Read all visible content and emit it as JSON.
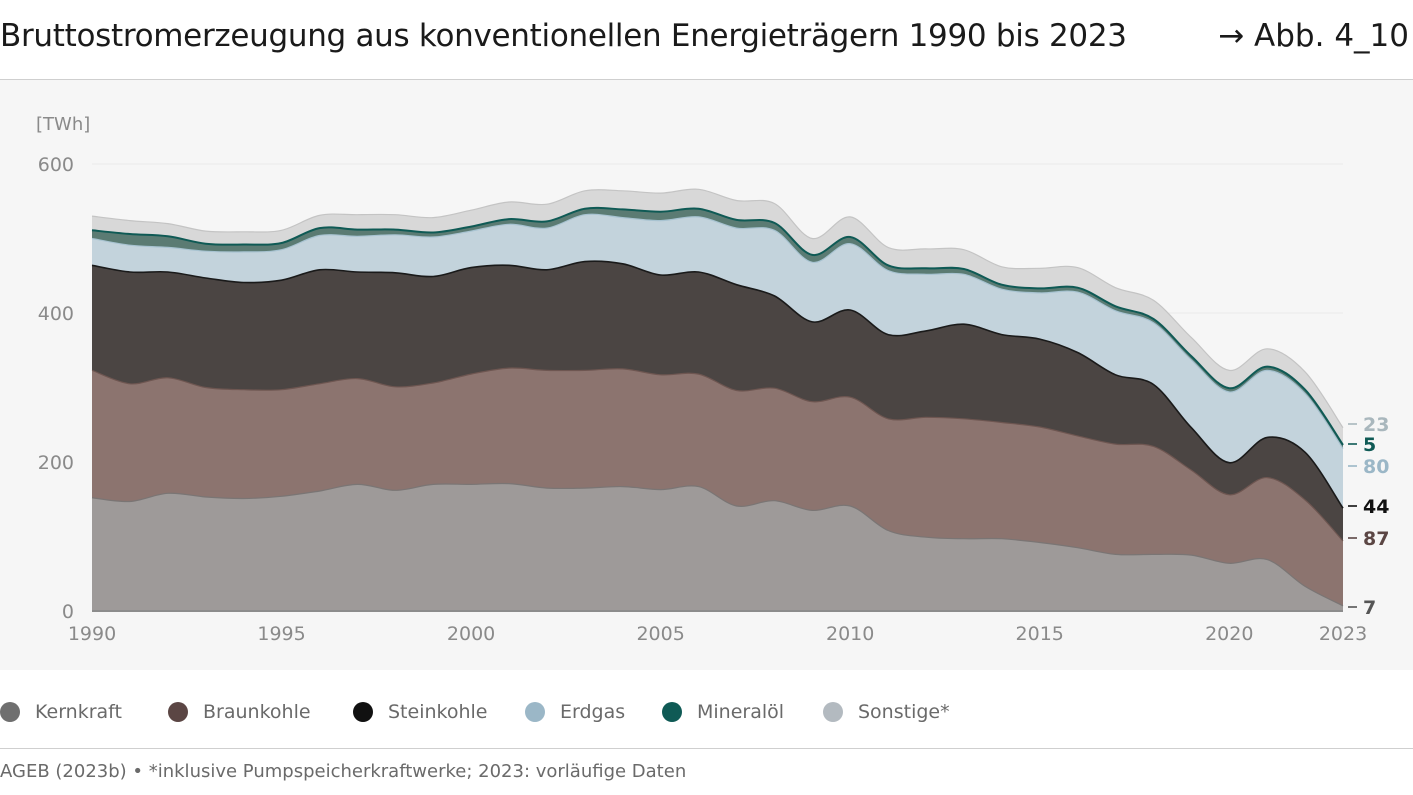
{
  "header": {
    "title": "Bruttostromerzeugung aus konventionellen Energieträgern 1990 bis 2023",
    "figure_ref": "→ Abb. 4_10"
  },
  "legend": [
    {
      "label": "Kernkraft",
      "color": "#6f6f6f"
    },
    {
      "label": "Braunkohle",
      "color": "#5b4644"
    },
    {
      "label": "Steinkohle",
      "color": "#111111"
    },
    {
      "label": "Erdgas",
      "color": "#9bb7c7"
    },
    {
      "label": "Mineralöl",
      "color": "#0f5a55"
    },
    {
      "label": "Sonstige*",
      "color": "#b3bac0"
    }
  ],
  "footer": {
    "source": "AGEB (2023b) • *inklusive Pumpspeicherkraftwerke; 2023: vorläufige Daten"
  },
  "chart_data": {
    "type": "area",
    "stacked": true,
    "title": "Bruttostromerzeugung aus konventionellen Energieträgern 1990 bis 2023",
    "unit_label": "[TWh]",
    "ylim": [
      0,
      600
    ],
    "yticks": [
      0,
      200,
      400,
      600
    ],
    "xlim": [
      1990,
      2023
    ],
    "xticks": [
      1990,
      1995,
      2000,
      2005,
      2010,
      2015,
      2020,
      2023
    ],
    "grid": true,
    "x": [
      1990,
      1991,
      1992,
      1993,
      1994,
      1995,
      1996,
      1997,
      1998,
      1999,
      2000,
      2001,
      2002,
      2003,
      2004,
      2005,
      2006,
      2007,
      2008,
      2009,
      2010,
      2011,
      2012,
      2013,
      2014,
      2015,
      2016,
      2017,
      2018,
      2019,
      2020,
      2021,
      2022,
      2023
    ],
    "series": [
      {
        "name": "Kernkraft",
        "color": "#9e9a99",
        "line": "#7a7574",
        "values": [
          152,
          147,
          158,
          153,
          151,
          154,
          161,
          170,
          162,
          170,
          170,
          171,
          165,
          165,
          167,
          163,
          167,
          141,
          148,
          135,
          141,
          108,
          99,
          97,
          97,
          92,
          85,
          76,
          76,
          75,
          64,
          69,
          33,
          7
        ]
      },
      {
        "name": "Braunkohle",
        "color": "#8c746f",
        "line": "#6e5651",
        "values": [
          171,
          158,
          155,
          147,
          146,
          143,
          144,
          142,
          139,
          136,
          148,
          155,
          158,
          158,
          158,
          154,
          151,
          155,
          151,
          146,
          146,
          150,
          161,
          161,
          156,
          155,
          150,
          148,
          145,
          114,
          92,
          110,
          116,
          87
        ]
      },
      {
        "name": "Steinkohle",
        "color": "#4b4543",
        "line": "#1a1a1a",
        "values": [
          141,
          150,
          142,
          147,
          144,
          147,
          153,
          143,
          153,
          143,
          143,
          138,
          135,
          146,
          141,
          134,
          137,
          142,
          124,
          107,
          117,
          113,
          116,
          127,
          118,
          118,
          112,
          93,
          83,
          57,
          43,
          54,
          64,
          44
        ]
      },
      {
        "name": "Erdgas",
        "color": "#c3d3dc",
        "line": "#a8c3d1",
        "values": [
          36,
          36,
          33,
          36,
          41,
          41,
          46,
          48,
          51,
          53,
          49,
          55,
          56,
          63,
          62,
          73,
          74,
          76,
          88,
          80,
          89,
          86,
          76,
          67,
          61,
          62,
          81,
          86,
          83,
          91,
          95,
          90,
          79,
          80
        ]
      },
      {
        "name": "Mineralöl",
        "color": "#5b7b73",
        "line": "#0f5a55",
        "values": [
          11,
          15,
          15,
          10,
          10,
          9,
          10,
          9,
          7,
          6,
          6,
          7,
          9,
          8,
          11,
          12,
          11,
          11,
          10,
          10,
          9,
          7,
          8,
          7,
          6,
          6,
          6,
          6,
          5,
          5,
          5,
          5,
          5,
          5
        ]
      },
      {
        "name": "Sonstige",
        "color": "#d8d8d8",
        "line": "#c4c4c4",
        "values": [
          19,
          18,
          17,
          17,
          17,
          17,
          17,
          20,
          20,
          20,
          22,
          23,
          23,
          24,
          25,
          25,
          26,
          26,
          26,
          22,
          27,
          24,
          26,
          26,
          24,
          27,
          27,
          25,
          25,
          25,
          24,
          24,
          24,
          23
        ]
      }
    ],
    "end_labels": [
      {
        "series": "Sonstige",
        "text": "23",
        "color": "#a9b7bd"
      },
      {
        "series": "Mineralöl",
        "text": "5",
        "color": "#0f5a55"
      },
      {
        "series": "Erdgas",
        "text": "80",
        "color": "#9bb7c7"
      },
      {
        "series": "Steinkohle",
        "text": "44",
        "color": "#111111"
      },
      {
        "series": "Braunkohle",
        "text": "87",
        "color": "#5b4644"
      },
      {
        "series": "Kernkraft",
        "text": "7",
        "color": "#555555"
      }
    ]
  }
}
